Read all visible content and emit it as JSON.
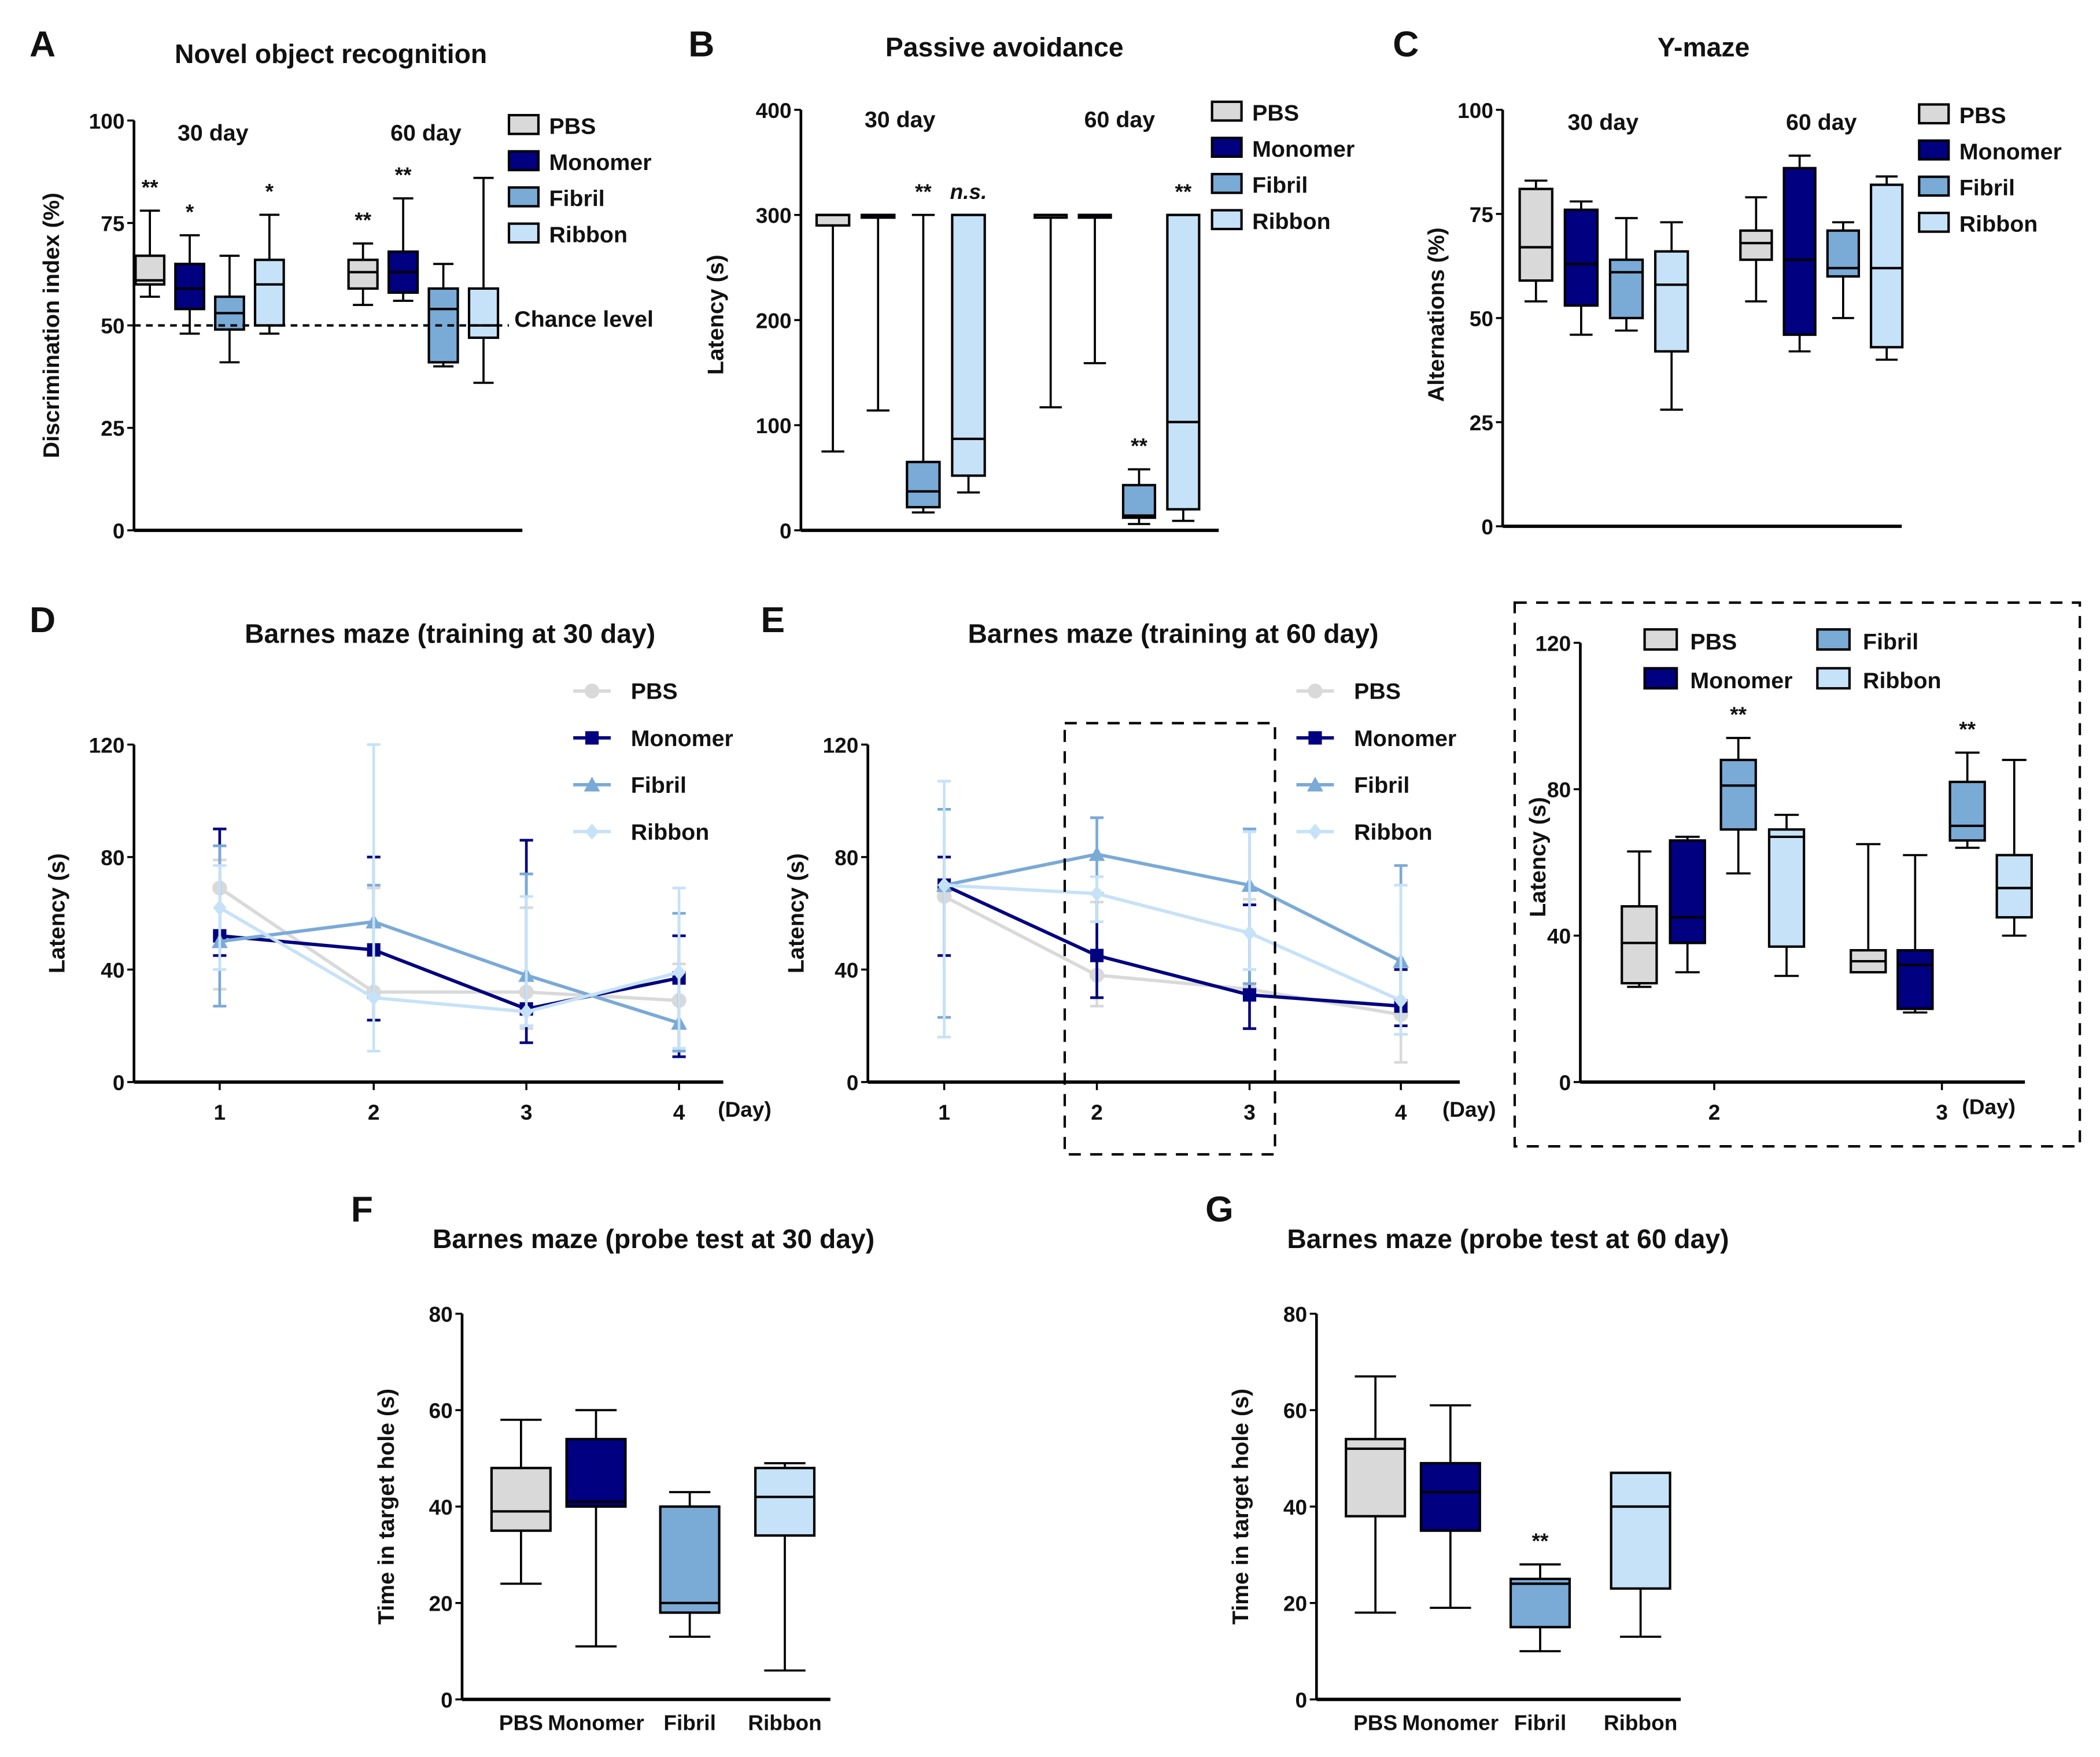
{
  "colors": {
    "PBS": "#d9d9d9",
    "Monomer": "#000080",
    "Fibril": "#7aaad6",
    "Ribbon": "#c6e2f8"
  },
  "groups": [
    "PBS",
    "Monomer",
    "Fibril",
    "Ribbon"
  ],
  "chart_data": [
    {
      "id": "A",
      "type": "box",
      "title": "Novel object recognition",
      "ylabel": "Discrimination index (%)",
      "ylim": [
        0,
        100
      ],
      "yticks": [
        0,
        25,
        50,
        75,
        100
      ],
      "timepoints": [
        "30 day",
        "60 day"
      ],
      "reference_line": {
        "value": 50,
        "label": "Chance level",
        "style": "dashed"
      },
      "boxes": [
        {
          "tp": "30 day",
          "group": "PBS",
          "min": 57,
          "q1": 60,
          "median": 61,
          "q3": 67,
          "max": 78,
          "sig": "**"
        },
        {
          "tp": "30 day",
          "group": "Monomer",
          "min": 48,
          "q1": 54,
          "median": 59,
          "q3": 65,
          "max": 72,
          "sig": "*"
        },
        {
          "tp": "30 day",
          "group": "Fibril",
          "min": 41,
          "q1": 49,
          "median": 53,
          "q3": 57,
          "max": 67,
          "sig": ""
        },
        {
          "tp": "30 day",
          "group": "Ribbon",
          "min": 48,
          "q1": 50,
          "median": 60,
          "q3": 66,
          "max": 77,
          "sig": "*"
        },
        {
          "tp": "60 day",
          "group": "PBS",
          "min": 55,
          "q1": 59,
          "median": 63,
          "q3": 66,
          "max": 70,
          "sig": "**"
        },
        {
          "tp": "60 day",
          "group": "Monomer",
          "min": 56,
          "q1": 58,
          "median": 63,
          "q3": 68,
          "max": 81,
          "sig": "**"
        },
        {
          "tp": "60 day",
          "group": "Fibril",
          "min": 40,
          "q1": 41,
          "median": 54,
          "q3": 59,
          "max": 65,
          "sig": ""
        },
        {
          "tp": "60 day",
          "group": "Ribbon",
          "min": 36,
          "q1": 47,
          "median": 50,
          "q3": 59,
          "max": 86,
          "sig": ""
        }
      ]
    },
    {
      "id": "B",
      "type": "box",
      "title": "Passive avoidance",
      "ylabel": "Latency (s)",
      "ylim": [
        0,
        400
      ],
      "yticks": [
        0,
        100,
        200,
        300,
        400
      ],
      "timepoints": [
        "30 day",
        "60 day"
      ],
      "boxes": [
        {
          "tp": "30 day",
          "group": "PBS",
          "min": 75,
          "q1": 290,
          "median": 300,
          "q3": 300,
          "max": 300,
          "sig": ""
        },
        {
          "tp": "30 day",
          "group": "Monomer",
          "min": 114,
          "q1": 300,
          "median": 300,
          "q3": 300,
          "max": 300,
          "sig": ""
        },
        {
          "tp": "30 day",
          "group": "Fibril",
          "min": 17,
          "q1": 22,
          "median": 37,
          "q3": 65,
          "max": 300,
          "sig": "**"
        },
        {
          "tp": "30 day",
          "group": "Ribbon",
          "min": 36,
          "q1": 52,
          "median": 87,
          "q3": 300,
          "max": 300,
          "sig": "n.s."
        },
        {
          "tp": "60 day",
          "group": "PBS",
          "min": 117,
          "q1": 300,
          "median": 300,
          "q3": 300,
          "max": 300,
          "sig": ""
        },
        {
          "tp": "60 day",
          "group": "Monomer",
          "min": 159,
          "q1": 300,
          "median": 300,
          "q3": 300,
          "max": 300,
          "sig": ""
        },
        {
          "tp": "60 day",
          "group": "Fibril",
          "min": 6,
          "q1": 12,
          "median": 14,
          "q3": 43,
          "max": 58,
          "sig": "**"
        },
        {
          "tp": "60 day",
          "group": "Ribbon",
          "min": 9,
          "q1": 20,
          "median": 103,
          "q3": 300,
          "max": 300,
          "sig": "**"
        }
      ]
    },
    {
      "id": "C",
      "type": "box",
      "title": "Y-maze",
      "ylabel": "Alternations (%)",
      "ylim": [
        0,
        100
      ],
      "yticks": [
        0,
        25,
        50,
        75,
        100
      ],
      "timepoints": [
        "30 day",
        "60 day"
      ],
      "boxes": [
        {
          "tp": "30 day",
          "group": "PBS",
          "min": 54,
          "q1": 59,
          "median": 67,
          "q3": 81,
          "max": 83,
          "sig": ""
        },
        {
          "tp": "30 day",
          "group": "Monomer",
          "min": 46,
          "q1": 53,
          "median": 63,
          "q3": 76,
          "max": 78,
          "sig": ""
        },
        {
          "tp": "30 day",
          "group": "Fibril",
          "min": 47,
          "q1": 50,
          "median": 61,
          "q3": 64,
          "max": 74,
          "sig": ""
        },
        {
          "tp": "30 day",
          "group": "Ribbon",
          "min": 28,
          "q1": 42,
          "median": 58,
          "q3": 66,
          "max": 73,
          "sig": ""
        },
        {
          "tp": "60 day",
          "group": "PBS",
          "min": 54,
          "q1": 64,
          "median": 68,
          "q3": 71,
          "max": 79,
          "sig": ""
        },
        {
          "tp": "60 day",
          "group": "Monomer",
          "min": 42,
          "q1": 46,
          "median": 64,
          "q3": 86,
          "max": 89,
          "sig": ""
        },
        {
          "tp": "60 day",
          "group": "Fibril",
          "min": 50,
          "q1": 60,
          "median": 62,
          "q3": 71,
          "max": 73,
          "sig": ""
        },
        {
          "tp": "60 day",
          "group": "Ribbon",
          "min": 40,
          "q1": 43,
          "median": 62,
          "q3": 82,
          "max": 84,
          "sig": ""
        }
      ]
    },
    {
      "id": "D",
      "type": "line",
      "title": "Barnes maze (training at 30 day)",
      "ylabel": "Latency (s)",
      "xunit": "(Day)",
      "ylim": [
        0,
        120
      ],
      "yticks": [
        0,
        40,
        80,
        120
      ],
      "x": [
        1,
        2,
        3,
        4
      ],
      "series": [
        {
          "name": "PBS",
          "marker": "circle",
          "values": [
            69,
            32,
            32,
            29
          ],
          "err_low": [
            33,
            22,
            19,
            19
          ],
          "err_high": [
            79,
            69,
            62,
            42
          ]
        },
        {
          "name": "Monomer",
          "marker": "square",
          "values": [
            52,
            47,
            26,
            37
          ],
          "err_low": [
            45,
            22,
            14,
            9
          ],
          "err_high": [
            90,
            80,
            86,
            52
          ]
        },
        {
          "name": "Fibril",
          "marker": "triangle",
          "values": [
            50,
            57,
            38,
            21
          ],
          "err_low": [
            27,
            30,
            20,
            11
          ],
          "err_high": [
            84,
            70,
            74,
            60
          ]
        },
        {
          "name": "Ribbon",
          "marker": "diamond",
          "values": [
            62,
            30,
            25,
            39
          ],
          "err_low": [
            40,
            11,
            20,
            12
          ],
          "err_high": [
            77,
            120,
            66,
            69
          ]
        }
      ]
    },
    {
      "id": "E",
      "type": "line",
      "title": "Barnes maze (training at 60 day)",
      "ylabel": "Latency (s)",
      "xunit": "(Day)",
      "ylim": [
        0,
        120
      ],
      "yticks": [
        0,
        40,
        80,
        120
      ],
      "x": [
        1,
        2,
        3,
        4
      ],
      "highlight_days": [
        2,
        3
      ],
      "series": [
        {
          "name": "PBS",
          "marker": "circle",
          "values": [
            66,
            38,
            33,
            24
          ],
          "err_low": [
            45,
            27,
            30,
            7
          ],
          "err_high": [
            72,
            64,
            65,
            41
          ]
        },
        {
          "name": "Monomer",
          "marker": "square",
          "values": [
            70,
            45,
            31,
            27
          ],
          "err_low": [
            45,
            30,
            19,
            20
          ],
          "err_high": [
            80,
            67,
            63,
            40
          ]
        },
        {
          "name": "Fibril",
          "marker": "triangle",
          "values": [
            70,
            81,
            70,
            43
          ],
          "err_low": [
            23,
            67,
            35,
            17
          ],
          "err_high": [
            97,
            94,
            90,
            77
          ]
        },
        {
          "name": "Ribbon",
          "marker": "diamond",
          "values": [
            70,
            67,
            53,
            29
          ],
          "err_low": [
            16,
            57,
            40,
            17
          ],
          "err_high": [
            107,
            73,
            89,
            70
          ]
        }
      ]
    },
    {
      "id": "E-inset",
      "type": "box",
      "ylabel": "Latency (s)",
      "xunit": "(Day)",
      "ylim": [
        0,
        120
      ],
      "yticks": [
        0,
        40,
        80,
        120
      ],
      "timepoints": [
        "2",
        "3"
      ],
      "boxes": [
        {
          "tp": "2",
          "group": "PBS",
          "min": 26,
          "q1": 27,
          "median": 38,
          "q3": 48,
          "max": 63,
          "sig": ""
        },
        {
          "tp": "2",
          "group": "Monomer",
          "min": 30,
          "q1": 38,
          "median": 45,
          "q3": 66,
          "max": 67,
          "sig": ""
        },
        {
          "tp": "2",
          "group": "Fibril",
          "min": 57,
          "q1": 69,
          "median": 81,
          "q3": 88,
          "max": 94,
          "sig": "**"
        },
        {
          "tp": "2",
          "group": "Ribbon",
          "min": 29,
          "q1": 37,
          "median": 67,
          "q3": 69,
          "max": 73,
          "sig": ""
        },
        {
          "tp": "3",
          "group": "PBS",
          "min": 30,
          "q1": 30,
          "median": 33,
          "q3": 36,
          "max": 65,
          "sig": ""
        },
        {
          "tp": "3",
          "group": "Monomer",
          "min": 19,
          "q1": 20,
          "median": 32,
          "q3": 36,
          "max": 62,
          "sig": ""
        },
        {
          "tp": "3",
          "group": "Fibril",
          "min": 64,
          "q1": 66,
          "median": 70,
          "q3": 82,
          "max": 90,
          "sig": "**"
        },
        {
          "tp": "3",
          "group": "Ribbon",
          "min": 40,
          "q1": 45,
          "median": 53,
          "q3": 62,
          "max": 88,
          "sig": ""
        }
      ]
    },
    {
      "id": "F",
      "type": "box",
      "title": "Barnes maze (probe test at 30 day)",
      "ylabel": "Time in target hole (s)",
      "ylim": [
        0,
        80
      ],
      "yticks": [
        0,
        20,
        40,
        60,
        80
      ],
      "categories": [
        "PBS",
        "Monomer",
        "Fibril",
        "Ribbon"
      ],
      "boxes": [
        {
          "group": "PBS",
          "min": 24,
          "q1": 35,
          "median": 39,
          "q3": 48,
          "max": 58,
          "sig": ""
        },
        {
          "group": "Monomer",
          "min": 11,
          "q1": 40,
          "median": 41,
          "q3": 54,
          "max": 60,
          "sig": ""
        },
        {
          "group": "Fibril",
          "min": 13,
          "q1": 18,
          "median": 20,
          "q3": 40,
          "max": 43,
          "sig": ""
        },
        {
          "group": "Ribbon",
          "min": 6,
          "q1": 34,
          "median": 42,
          "q3": 48,
          "max": 49,
          "sig": ""
        }
      ]
    },
    {
      "id": "G",
      "type": "box",
      "title": "Barnes maze (probe test at 60 day)",
      "ylabel": "Time in target hole (s)",
      "ylim": [
        0,
        80
      ],
      "yticks": [
        0,
        20,
        40,
        60,
        80
      ],
      "categories": [
        "PBS",
        "Monomer",
        "Fibril",
        "Ribbon"
      ],
      "boxes": [
        {
          "group": "PBS",
          "min": 18,
          "q1": 38,
          "median": 52,
          "q3": 54,
          "max": 67,
          "sig": ""
        },
        {
          "group": "Monomer",
          "min": 19,
          "q1": 35,
          "median": 43,
          "q3": 49,
          "max": 61,
          "sig": ""
        },
        {
          "group": "Fibril",
          "min": 10,
          "q1": 15,
          "median": 24,
          "q3": 25,
          "max": 28,
          "sig": "**"
        },
        {
          "group": "Ribbon",
          "min": 13,
          "q1": 23,
          "median": 40,
          "q3": 47,
          "max": 47,
          "sig": ""
        }
      ]
    }
  ]
}
